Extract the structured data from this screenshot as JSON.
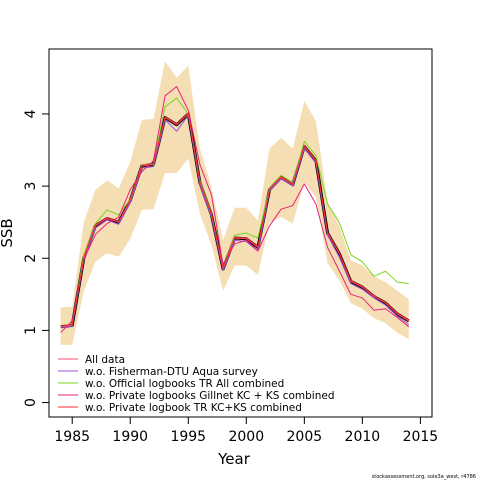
{
  "chart_data": {
    "type": "line",
    "xlabel": "Year",
    "ylabel": "SSB",
    "xlim": [
      1983,
      2016
    ],
    "ylim": [
      -0.2,
      4.9
    ],
    "x_ticks": [
      1985,
      1990,
      1995,
      2000,
      2005,
      2010,
      2015
    ],
    "y_ticks": [
      0,
      1,
      2,
      3,
      4
    ],
    "grid": false,
    "legend_position": "bottom-left",
    "years": [
      1984,
      1985,
      1986,
      1987,
      1988,
      1989,
      1990,
      1991,
      1992,
      1993,
      1994,
      1995,
      1996,
      1997,
      1998,
      1999,
      2000,
      2001,
      2002,
      2003,
      2004,
      2005,
      2006,
      2007,
      2008,
      2009,
      2010,
      2011,
      2012,
      2013,
      2014
    ],
    "main": {
      "name": "",
      "color": "#000000",
      "values": [
        1.05,
        1.07,
        2.0,
        2.45,
        2.55,
        2.5,
        2.8,
        3.28,
        3.3,
        3.95,
        3.85,
        4.0,
        3.05,
        2.6,
        1.85,
        2.28,
        2.27,
        2.15,
        2.95,
        3.12,
        3.02,
        3.55,
        3.35,
        2.35,
        2.07,
        1.68,
        1.6,
        1.47,
        1.38,
        1.23,
        1.13
      ]
    },
    "confidence_band": {
      "color": "#f5deb3",
      "upper": [
        1.32,
        1.33,
        2.5,
        2.95,
        3.08,
        2.97,
        3.33,
        3.92,
        3.93,
        4.73,
        4.5,
        4.67,
        3.52,
        2.98,
        2.25,
        2.7,
        2.7,
        2.52,
        3.52,
        3.67,
        3.52,
        4.18,
        3.9,
        2.78,
        2.45,
        1.97,
        1.9,
        1.75,
        1.67,
        1.55,
        1.43
      ],
      "lower": [
        0.8,
        0.8,
        1.55,
        1.95,
        2.07,
        2.02,
        2.27,
        2.67,
        2.68,
        3.18,
        3.18,
        3.38,
        2.62,
        2.18,
        1.55,
        1.9,
        1.9,
        1.77,
        2.5,
        2.57,
        2.48,
        3.05,
        2.85,
        1.93,
        1.7,
        1.38,
        1.3,
        1.17,
        1.1,
        0.97,
        0.88
      ]
    },
    "series": [
      {
        "name": "All data",
        "color": "#ff4f6e",
        "values": [
          1.05,
          1.07,
          2.0,
          2.45,
          2.55,
          2.5,
          2.8,
          3.28,
          3.3,
          3.95,
          3.85,
          4.0,
          3.05,
          2.6,
          1.85,
          2.28,
          2.27,
          2.15,
          2.95,
          3.12,
          3.02,
          3.55,
          3.35,
          2.35,
          2.07,
          1.68,
          1.6,
          1.47,
          1.38,
          1.23,
          1.13
        ]
      },
      {
        "name": "w.o. Fisherman-DTU Aqua survey",
        "color": "#9b4fe0",
        "values": [
          1.04,
          1.06,
          1.97,
          2.42,
          2.53,
          2.47,
          2.77,
          3.25,
          3.27,
          3.92,
          3.76,
          3.98,
          3.02,
          2.57,
          1.83,
          2.25,
          2.23,
          2.1,
          2.93,
          3.1,
          3.0,
          3.52,
          3.32,
          2.32,
          2.02,
          1.65,
          1.57,
          1.45,
          1.35,
          1.2,
          1.08
        ]
      },
      {
        "name": "w.o. Official logbooks TR All combined",
        "color": "#7ed321",
        "values": [
          1.05,
          1.1,
          2.05,
          2.48,
          2.67,
          2.6,
          2.82,
          3.3,
          3.3,
          4.1,
          4.22,
          4.0,
          3.08,
          2.62,
          1.87,
          2.32,
          2.35,
          2.28,
          2.98,
          3.15,
          3.05,
          3.62,
          3.42,
          2.75,
          2.5,
          2.05,
          1.95,
          1.75,
          1.82,
          1.67,
          1.65
        ]
      },
      {
        "name": "w.o. Private logbooks Gillnet KC + KS combined",
        "color": "#e8207a",
        "values": [
          0.97,
          1.13,
          1.98,
          2.33,
          2.48,
          2.57,
          2.95,
          3.2,
          3.35,
          4.25,
          4.38,
          4.05,
          3.3,
          2.88,
          1.9,
          2.2,
          2.25,
          2.1,
          2.45,
          2.68,
          2.73,
          3.03,
          2.75,
          2.15,
          1.83,
          1.5,
          1.45,
          1.28,
          1.3,
          1.18,
          1.05
        ]
      },
      {
        "name": "w.o. Private logbook TR KC+KS combined",
        "color": "#ff2a2a",
        "values": [
          1.06,
          1.08,
          2.01,
          2.46,
          2.56,
          2.51,
          2.81,
          3.29,
          3.31,
          3.96,
          3.86,
          4.01,
          3.06,
          2.61,
          1.86,
          2.29,
          2.28,
          2.16,
          2.96,
          3.13,
          3.03,
          3.56,
          3.36,
          2.36,
          2.08,
          1.69,
          1.61,
          1.48,
          1.39,
          1.24,
          1.14
        ]
      }
    ]
  },
  "footer_text": "stockassessment.org, sole3a_west, r4786"
}
